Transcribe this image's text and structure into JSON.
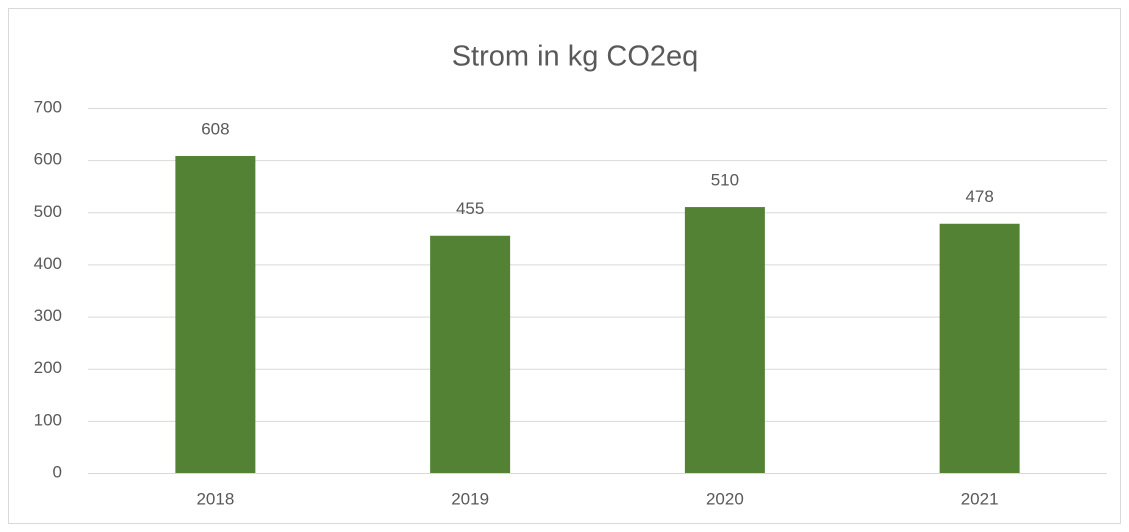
{
  "chart_data": {
    "type": "bar",
    "title": "Strom in kg CO2eq",
    "categories": [
      "2018",
      "2019",
      "2020",
      "2021"
    ],
    "values": [
      608,
      455,
      510,
      478
    ],
    "color": "#548235",
    "ylim": [
      0,
      700
    ],
    "yticks": [
      0,
      100,
      200,
      300,
      400,
      500,
      600,
      700
    ],
    "grid": true
  }
}
